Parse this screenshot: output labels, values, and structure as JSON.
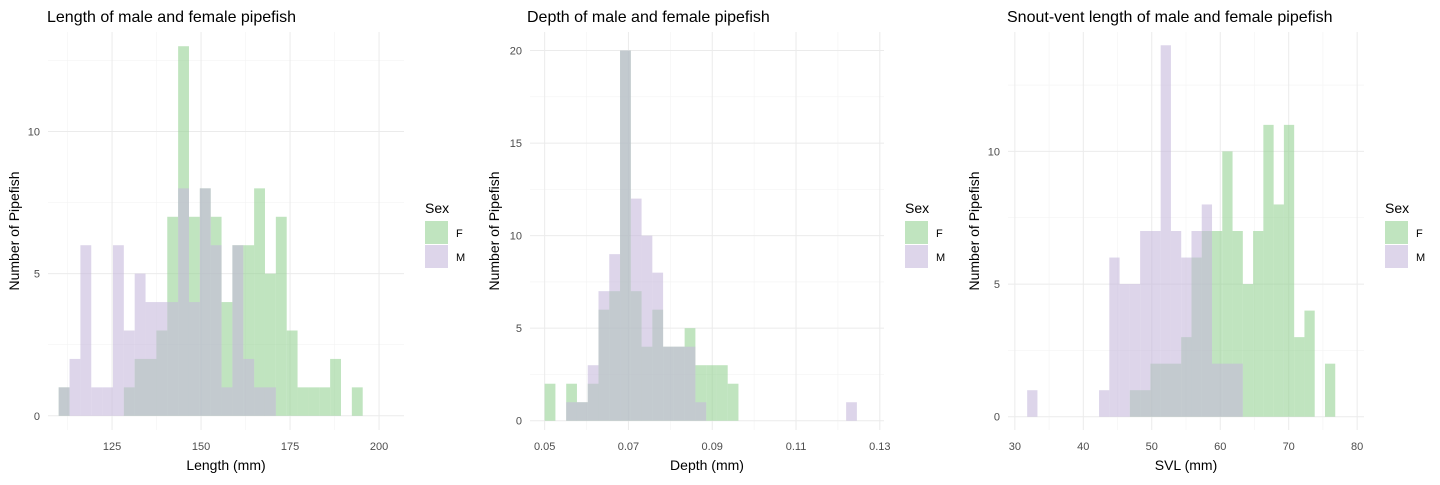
{
  "colors": {
    "F": "#92D090",
    "M": "#C5B7DA"
  },
  "chart_data": [
    {
      "type": "histogram",
      "title": "Length of male and female pipefish",
      "xlabel": "Length (mm)",
      "ylabel": "Number of Pipefish",
      "xlim": [
        107,
        207
      ],
      "ylim": [
        -0.5,
        13.5
      ],
      "xticks": [
        125,
        150,
        175,
        200
      ],
      "yticks": [
        0,
        5,
        10
      ],
      "bin_start": 110.0,
      "bin_width": 3.05,
      "legend": {
        "title": "Sex",
        "placement": "right"
      },
      "series": [
        {
          "name": "F",
          "counts": [
            1,
            0,
            0,
            0,
            0,
            0,
            1,
            2,
            2,
            3,
            7,
            13,
            7,
            8,
            7,
            4,
            6,
            6,
            8,
            5,
            7,
            3,
            1,
            1,
            1,
            2,
            0,
            1
          ]
        },
        {
          "name": "M",
          "counts": [
            1,
            2,
            6,
            1,
            1,
            6,
            3,
            5,
            4,
            4,
            4,
            8,
            4,
            8,
            6,
            1,
            6,
            2,
            1,
            1,
            0,
            0,
            0,
            0,
            0,
            0,
            0,
            0
          ]
        }
      ]
    },
    {
      "type": "histogram",
      "title": "Depth of male and female pipefish",
      "xlabel": "Depth (mm)",
      "ylabel": "Number of Pipefish",
      "xlim": [
        0.0465,
        0.131
      ],
      "ylim": [
        -0.5,
        21
      ],
      "xticks": [
        0.05,
        0.07,
        0.09,
        0.11,
        0.13
      ],
      "xtick_labels": [
        "0.05",
        "0.07",
        "0.09",
        "0.11",
        "0.13"
      ],
      "yticks": [
        0,
        5,
        10,
        15,
        20
      ],
      "bin_start": 0.05,
      "bin_width": 0.00257,
      "legend": {
        "title": "Sex",
        "placement": "right"
      },
      "series": [
        {
          "name": "F",
          "counts": [
            2,
            0,
            2,
            1,
            2,
            6,
            7,
            20,
            7,
            4,
            6,
            4,
            4,
            5,
            3,
            3,
            3,
            2,
            0,
            0,
            0,
            0,
            0,
            0,
            0,
            0,
            0,
            0,
            0
          ]
        },
        {
          "name": "M",
          "counts": [
            0,
            0,
            1,
            1,
            3,
            7,
            9,
            20,
            12,
            10,
            8,
            4,
            4,
            4,
            1,
            0,
            0,
            0,
            0,
            0,
            0,
            0,
            0,
            0,
            0,
            0,
            0,
            0,
            1
          ]
        }
      ]
    },
    {
      "type": "histogram",
      "title": "Snout-vent length of male and female pipefish",
      "xlabel": "SVL (mm)",
      "ylabel": "Number of Pipefish",
      "xlim": [
        29,
        81
      ],
      "ylim": [
        -0.5,
        14.5
      ],
      "xticks": [
        30,
        40,
        50,
        60,
        70,
        80
      ],
      "yticks": [
        0,
        5,
        10
      ],
      "bin_start": 31.8,
      "bin_width": 1.5,
      "legend": {
        "title": "Sex",
        "placement": "right"
      },
      "series": [
        {
          "name": "F",
          "counts": [
            0,
            0,
            0,
            0,
            0,
            0,
            0,
            0,
            0,
            0,
            1,
            1,
            2,
            2,
            2,
            3,
            6,
            7,
            7,
            10,
            7,
            5,
            7,
            11,
            8,
            11,
            3,
            4,
            0,
            2
          ]
        },
        {
          "name": "M",
          "counts": [
            1,
            0,
            0,
            0,
            0,
            0,
            0,
            1,
            6,
            5,
            5,
            7,
            7,
            14,
            7,
            6,
            7,
            8,
            2,
            2,
            2,
            0,
            0,
            0,
            0,
            0,
            0,
            0,
            0,
            0
          ]
        }
      ]
    }
  ]
}
